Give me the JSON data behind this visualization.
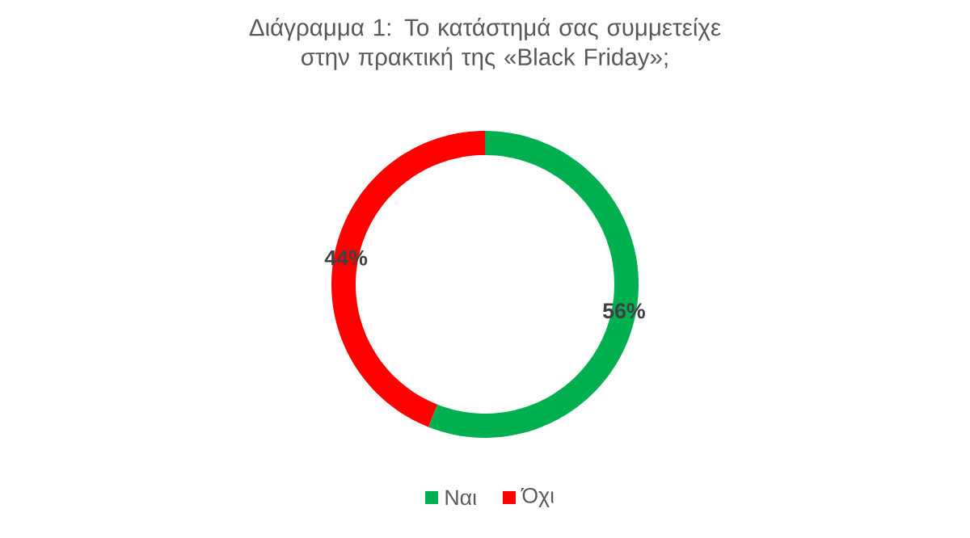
{
  "chart_data": {
    "type": "donut",
    "title": "Διάγραμμα 1: Το κατάστημά σας συμμετείχε στην πρακτική της «Black Friday»;",
    "categories": [
      "Ναι",
      "Όχι"
    ],
    "values": [
      56,
      44
    ],
    "colors": [
      "#00b050",
      "#ff0000"
    ],
    "value_labels": [
      "56%",
      "44%"
    ],
    "legend": "bottom"
  }
}
